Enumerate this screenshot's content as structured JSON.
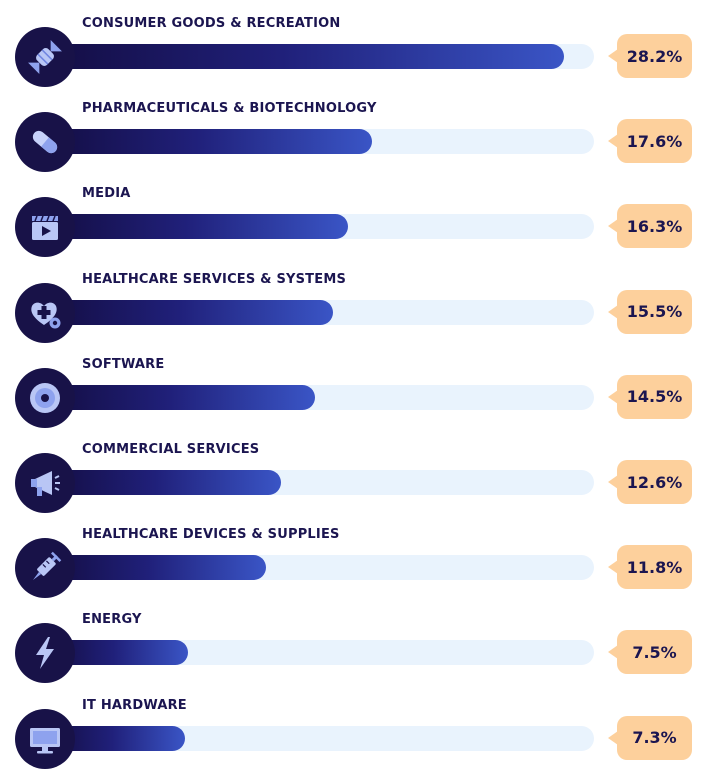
{
  "chart_data": {
    "type": "bar",
    "orientation": "horizontal",
    "categories": [
      "CONSUMER GOODS & RECREATION",
      "PHARMACEUTICALS & BIOTECHNOLOGY",
      "MEDIA",
      "HEALTHCARE SERVICES & SYSTEMS",
      "SOFTWARE",
      "COMMERCIAL SERVICES",
      "HEALTHCARE DEVICES & SUPPLIES",
      "ENERGY",
      "IT HARDWARE"
    ],
    "values": [
      28.2,
      17.6,
      16.3,
      15.5,
      14.5,
      12.6,
      11.8,
      7.5,
      7.3
    ],
    "value_labels": [
      "28.2%",
      "17.6%",
      "16.3%",
      "15.5%",
      "14.5%",
      "12.6%",
      "11.8%",
      "7.5%",
      "7.3%"
    ],
    "icons": [
      "candy-icon",
      "pill-icon",
      "clapperboard-icon",
      "heart-plus-gear-icon",
      "disc-icon",
      "megaphone-icon",
      "syringe-icon",
      "lightning-icon",
      "monitor-icon"
    ],
    "xlim": [
      0,
      30
    ],
    "grid": false,
    "legend": "none",
    "colors": {
      "bar_start": "#140e45",
      "bar_end": "#3a55c6",
      "track": "#e9f3fd",
      "icon_circle": "#181248",
      "value_tag": "#fdd09c",
      "text": "#1b1550"
    }
  }
}
